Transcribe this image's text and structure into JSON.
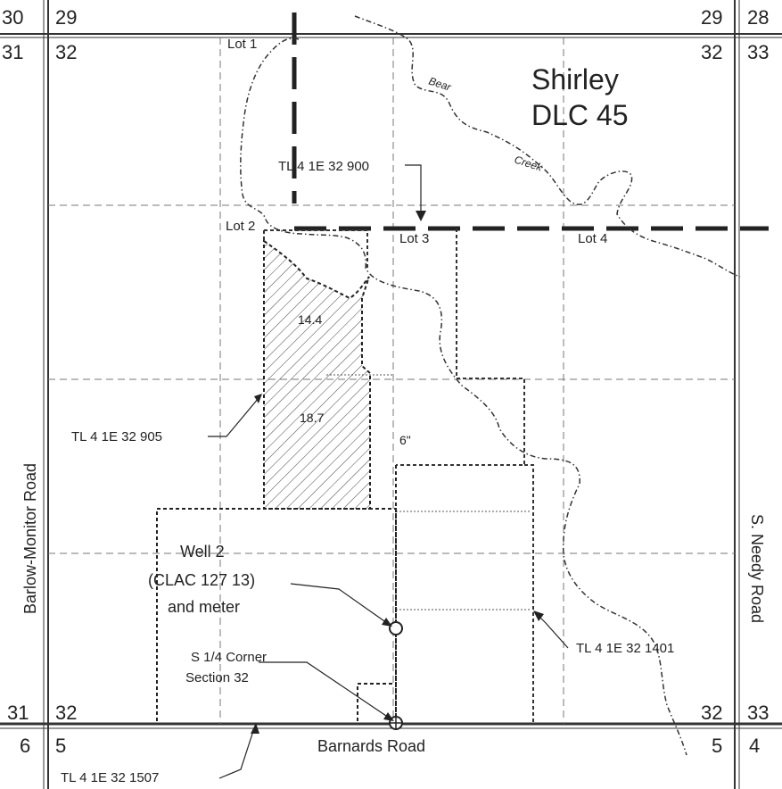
{
  "section_numbers": {
    "top_left_above_left": "30",
    "top_left_above_right": "29",
    "top_left_below_left": "31",
    "top_left_below_right": "32",
    "top_right_above_left": "29",
    "top_right_above_right": "28",
    "top_right_below_left": "32",
    "top_right_below_right": "33",
    "bottom_left_above_left": "31",
    "bottom_left_above_right": "32",
    "bottom_left_below_left": "6",
    "bottom_left_below_right": "5",
    "bottom_right_above_left": "32",
    "bottom_right_above_right": "33",
    "bottom_right_below_left": "5",
    "bottom_right_below_right": "4"
  },
  "claim": {
    "line1": "Shirley",
    "line2": "DLC 45"
  },
  "creek": {
    "word1": "Bear",
    "word2": "Creek"
  },
  "lots": {
    "lot1": "Lot 1",
    "lot2": "Lot 2",
    "lot3": "Lot 3",
    "lot4": "Lot 4"
  },
  "taxlots": {
    "tl900": "TL 4 1E 32 900",
    "tl905": "TL 4 1E 32 905",
    "tl1401": "TL 4 1E 32 1401",
    "tl1507": "TL 4 1E 32 1507"
  },
  "acreage": {
    "upper": "14.4",
    "lower": "18.7"
  },
  "pipe_size": "6\"",
  "well": {
    "line1": "Well 2",
    "line2": "(CLAC 127 13)",
    "line3": "and meter"
  },
  "corner": {
    "line1": "S 1/4 Corner",
    "line2": "Section 32"
  },
  "roads": {
    "west": "Barlow-Monitor Road",
    "east": "S. Needy Road",
    "south": "Barnards Road"
  },
  "colors": {
    "ink": "#222222",
    "grid": "#777777",
    "hatch": "#444444"
  }
}
